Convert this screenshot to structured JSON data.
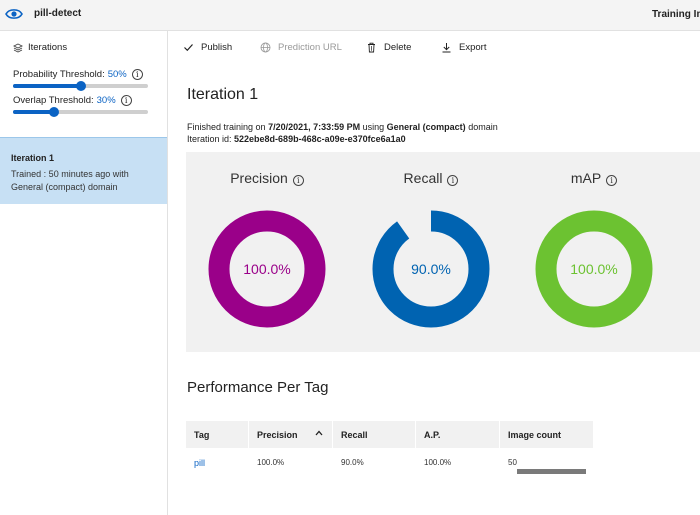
{
  "topbar": {
    "project_name": "pill-detect",
    "right_label": "Training Ima"
  },
  "sidebar": {
    "header": "Iterations",
    "probability": {
      "label": "Probability Threshold:",
      "value": "50%",
      "level": 0.5
    },
    "overlap": {
      "label": "Overlap Threshold:",
      "value": "30%",
      "level": 0.3
    },
    "iteration": {
      "title": "Iteration 1",
      "desc": "Trained : 50 minutes ago with General (compact) domain"
    }
  },
  "toolbar": {
    "publish": "Publish",
    "prediction_url": "Prediction URL",
    "delete": "Delete",
    "export": "Export"
  },
  "main": {
    "title": "Iteration 1",
    "finished_prefix": "Finished training on ",
    "finished_date": "7/20/2021, 7:33:59 PM",
    "finished_mid": " using ",
    "finished_domain": "General (compact)",
    "finished_suffix": " domain",
    "iteration_id_label": "Iteration id: ",
    "iteration_id": "522ebe8d-689b-468c-a09e-e370fce6a1a0"
  },
  "metrics": [
    {
      "label": "Precision",
      "value_text": "100.0%",
      "value": 1.0,
      "color": "#9a0089"
    },
    {
      "label": "Recall",
      "value_text": "90.0%",
      "value": 0.9,
      "color": "#0063b1"
    },
    {
      "label": "mAP",
      "value_text": "100.0%",
      "value": 1.0,
      "color": "#6cc231"
    }
  ],
  "performance": {
    "title": "Performance Per Tag",
    "columns": [
      "Tag",
      "Precision",
      "Recall",
      "A.P.",
      "Image count"
    ],
    "rows": [
      {
        "tag": "pill",
        "precision": "100.0%",
        "recall": "90.0%",
        "ap": "100.0%",
        "image_count": "50"
      }
    ]
  }
}
